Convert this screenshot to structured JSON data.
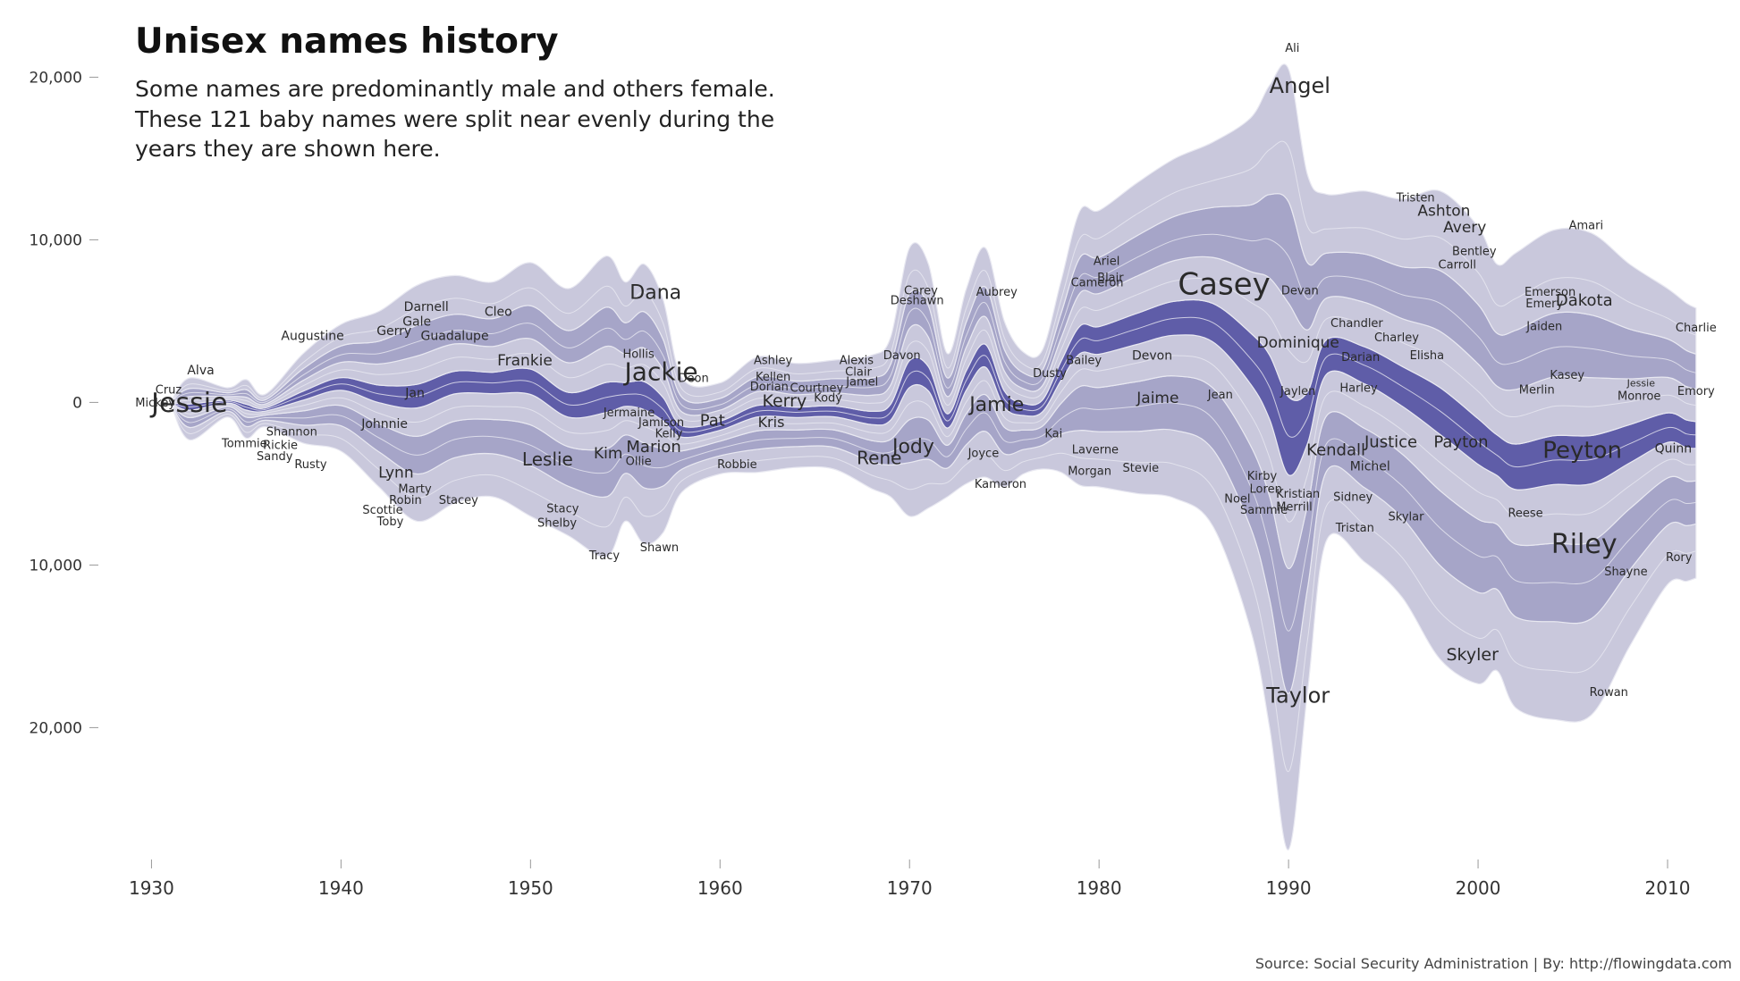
{
  "chart_data": {
    "type": "area",
    "subtype": "streamgraph",
    "title": "Unisex names history",
    "subtitle_lines": [
      "Some names are predominantly male and others female.",
      "These 121 baby names were split near evenly during the",
      "years they are shown here."
    ],
    "source": "Source: Social Security Administration | By: http://flowingdata.com",
    "x_ticks": [
      "1930",
      "1940",
      "1950",
      "1960",
      "1970",
      "1980",
      "1990",
      "2000",
      "2010"
    ],
    "x_tick_values": [
      1930,
      1940,
      1950,
      1960,
      1970,
      1980,
      1990,
      2000,
      2010
    ],
    "y_ticks": [
      "20,000",
      "10,000",
      "0",
      "10,000",
      "20,000"
    ],
    "y_tick_values": [
      20000,
      10000,
      0,
      -10000,
      -20000
    ],
    "xlim": [
      1928.8,
      2012.5
    ],
    "ylim": [
      -28000,
      22000
    ],
    "colors": {
      "light": "#c9c8dc",
      "mid": "#a6a5c8",
      "deep": "#7a78b8",
      "dark": "#5f5da8",
      "separator": "#e8e8f1"
    },
    "envelope": {
      "years": [
        1931,
        1932,
        1934,
        1935,
        1936,
        1938,
        1940,
        1942,
        1944,
        1946,
        1948,
        1950,
        1952,
        1954,
        1955,
        1956,
        1957,
        1958,
        1960,
        1962,
        1964,
        1966,
        1968,
        1969,
        1970,
        1971,
        1972,
        1973,
        1974,
        1975,
        1976,
        1977,
        1978,
        1979,
        1980,
        1982,
        1984,
        1986,
        1988,
        1989,
        1990,
        1991,
        1992,
        1994,
        1996,
        1998,
        2000,
        2001,
        2002,
        2004,
        2006,
        2008,
        2010,
        2011,
        2011.5
      ],
      "top": [
        0,
        1500,
        900,
        1400,
        500,
        3000,
        4800,
        5600,
        7200,
        7800,
        7400,
        8600,
        7000,
        9000,
        7400,
        8500,
        6300,
        1500,
        1200,
        2800,
        2400,
        2600,
        2900,
        4000,
        9500,
        8500,
        3000,
        7000,
        9500,
        5000,
        3100,
        3200,
        7500,
        11800,
        11800,
        13500,
        15000,
        16000,
        17500,
        19500,
        20500,
        14000,
        12800,
        13000,
        12500,
        13000,
        10800,
        8500,
        9200,
        10600,
        10400,
        8500,
        7000,
        6100,
        5800
      ],
      "bottom": [
        0,
        -2300,
        -900,
        -2200,
        -1500,
        -2500,
        -3000,
        -5200,
        -7300,
        -6200,
        -5800,
        -7000,
        -8200,
        -9500,
        -7300,
        -8700,
        -8000,
        -5500,
        -4400,
        -4300,
        -4000,
        -4100,
        -5300,
        -5800,
        -7000,
        -6500,
        -5800,
        -5000,
        -4600,
        -5200,
        -4400,
        -4100,
        -4300,
        -5100,
        -5200,
        -5600,
        -5900,
        -7600,
        -14000,
        -20000,
        -27500,
        -17800,
        -8500,
        -9800,
        -12000,
        -15800,
        -17300,
        -16500,
        -18800,
        -19500,
        -19200,
        -15000,
        -11200,
        -11000,
        -10800
      ]
    },
    "names": [
      {
        "label": "Jessie",
        "year": 1932,
        "y": 0,
        "size": 30
      },
      {
        "label": "Alva",
        "year": 1932.6,
        "y": 2000,
        "size": 14
      },
      {
        "label": "Cruz",
        "year": 1930.9,
        "y": 800,
        "size": 13
      },
      {
        "label": "Mickey",
        "year": 1930.2,
        "y": 0,
        "size": 13
      },
      {
        "label": "Tommie",
        "year": 1934.9,
        "y": -2500,
        "size": 13
      },
      {
        "label": "Shannon",
        "year": 1937.4,
        "y": -1800,
        "size": 13
      },
      {
        "label": "Rickie",
        "year": 1936.8,
        "y": -2600,
        "size": 13
      },
      {
        "label": "Sandy",
        "year": 1936.5,
        "y": -3300,
        "size": 13
      },
      {
        "label": "Rusty",
        "year": 1938.4,
        "y": -3800,
        "size": 13
      },
      {
        "label": "Augustine",
        "year": 1938.5,
        "y": 4100,
        "size": 14
      },
      {
        "label": "Darnell",
        "year": 1944.5,
        "y": 5900,
        "size": 14
      },
      {
        "label": "Gale",
        "year": 1944,
        "y": 5000,
        "size": 14
      },
      {
        "label": "Gerry",
        "year": 1942.8,
        "y": 4400,
        "size": 14
      },
      {
        "label": "Guadalupe",
        "year": 1946,
        "y": 4100,
        "size": 14
      },
      {
        "label": "Cleo",
        "year": 1948.3,
        "y": 5600,
        "size": 14
      },
      {
        "label": "Dana",
        "year": 1956.6,
        "y": 6800,
        "size": 22
      },
      {
        "label": "Frankie",
        "year": 1949.7,
        "y": 2600,
        "size": 17
      },
      {
        "label": "Jan",
        "year": 1943.9,
        "y": 600,
        "size": 14
      },
      {
        "label": "Johnnie",
        "year": 1942.3,
        "y": -1300,
        "size": 14
      },
      {
        "label": "Hollis",
        "year": 1955.7,
        "y": 3000,
        "size": 13
      },
      {
        "label": "Jackie",
        "year": 1956.9,
        "y": 1900,
        "size": 28
      },
      {
        "label": "Deon",
        "year": 1958.6,
        "y": 1500,
        "size": 13
      },
      {
        "label": "Jermaine",
        "year": 1955.2,
        "y": -600,
        "size": 13
      },
      {
        "label": "Jamison",
        "year": 1956.9,
        "y": -1200,
        "size": 13
      },
      {
        "label": "Kelly",
        "year": 1957.3,
        "y": -1900,
        "size": 13
      },
      {
        "label": "Pat",
        "year": 1959.6,
        "y": -1100,
        "size": 18
      },
      {
        "label": "Kris",
        "year": 1962.7,
        "y": -1200,
        "size": 16
      },
      {
        "label": "Leslie",
        "year": 1950.9,
        "y": -3500,
        "size": 20
      },
      {
        "label": "Kim",
        "year": 1954.1,
        "y": -3100,
        "size": 17
      },
      {
        "label": "Marion",
        "year": 1956.5,
        "y": -2700,
        "size": 18
      },
      {
        "label": "Ollie",
        "year": 1955.7,
        "y": -3600,
        "size": 13
      },
      {
        "label": "Robbie",
        "year": 1960.9,
        "y": -3800,
        "size": 13
      },
      {
        "label": "Lynn",
        "year": 1942.9,
        "y": -4300,
        "size": 17
      },
      {
        "label": "Marty",
        "year": 1943.9,
        "y": -5300,
        "size": 13
      },
      {
        "label": "Robin",
        "year": 1943.4,
        "y": -6000,
        "size": 13
      },
      {
        "label": "Stacey",
        "year": 1946.2,
        "y": -6000,
        "size": 13
      },
      {
        "label": "Scottie",
        "year": 1942.2,
        "y": -6600,
        "size": 13
      },
      {
        "label": "Toby",
        "year": 1942.6,
        "y": -7300,
        "size": 13
      },
      {
        "label": "Stacy",
        "year": 1951.7,
        "y": -6500,
        "size": 13
      },
      {
        "label": "Shelby",
        "year": 1951.4,
        "y": -7400,
        "size": 13
      },
      {
        "label": "Tracy",
        "year": 1953.9,
        "y": -9400,
        "size": 13
      },
      {
        "label": "Shawn",
        "year": 1956.8,
        "y": -8900,
        "size": 13
      },
      {
        "label": "Ashley",
        "year": 1962.8,
        "y": 2600,
        "size": 13
      },
      {
        "label": "Kellen",
        "year": 1962.8,
        "y": 1600,
        "size": 13
      },
      {
        "label": "Dorian",
        "year": 1962.6,
        "y": 1000,
        "size": 13
      },
      {
        "label": "Courtney",
        "year": 1965.1,
        "y": 900,
        "size": 13
      },
      {
        "label": "Kerry",
        "year": 1963.4,
        "y": 100,
        "size": 19
      },
      {
        "label": "Kody",
        "year": 1965.7,
        "y": 300,
        "size": 13
      },
      {
        "label": "Alexis",
        "year": 1967.2,
        "y": 2600,
        "size": 13
      },
      {
        "label": "Clair",
        "year": 1967.3,
        "y": 1900,
        "size": 13
      },
      {
        "label": "Jamel",
        "year": 1967.5,
        "y": 1300,
        "size": 13
      },
      {
        "label": "Davon",
        "year": 1969.6,
        "y": 2900,
        "size": 13
      },
      {
        "label": "Carey",
        "year": 1970.6,
        "y": 6900,
        "size": 13
      },
      {
        "label": "Deshawn",
        "year": 1970.4,
        "y": 6300,
        "size": 13
      },
      {
        "label": "Aubrey",
        "year": 1974.6,
        "y": 6800,
        "size": 13
      },
      {
        "label": "Jamie",
        "year": 1974.6,
        "y": -100,
        "size": 22
      },
      {
        "label": "Jody",
        "year": 1970.2,
        "y": -2700,
        "size": 22
      },
      {
        "label": "Rene",
        "year": 1968.4,
        "y": -3400,
        "size": 20
      },
      {
        "label": "Joyce",
        "year": 1973.9,
        "y": -3100,
        "size": 13
      },
      {
        "label": "Kameron",
        "year": 1974.8,
        "y": -5000,
        "size": 13
      },
      {
        "label": "Dusty",
        "year": 1977.4,
        "y": 1800,
        "size": 13
      },
      {
        "label": "Kai",
        "year": 1977.6,
        "y": -1900,
        "size": 13
      },
      {
        "label": "Bailey",
        "year": 1979.2,
        "y": 2600,
        "size": 13
      },
      {
        "label": "Laverne",
        "year": 1979.8,
        "y": -2900,
        "size": 13
      },
      {
        "label": "Morgan",
        "year": 1979.5,
        "y": -4200,
        "size": 13
      },
      {
        "label": "Stevie",
        "year": 1982.2,
        "y": -4000,
        "size": 13
      },
      {
        "label": "Ariel",
        "year": 1980.4,
        "y": 8700,
        "size": 13
      },
      {
        "label": "Blair",
        "year": 1980.6,
        "y": 7700,
        "size": 13
      },
      {
        "label": "Cameron",
        "year": 1979.9,
        "y": 7400,
        "size": 13
      },
      {
        "label": "Casey",
        "year": 1986.6,
        "y": 7300,
        "size": 34
      },
      {
        "label": "Devan",
        "year": 1990.6,
        "y": 6900,
        "size": 13
      },
      {
        "label": "Devon",
        "year": 1982.8,
        "y": 2900,
        "size": 14
      },
      {
        "label": "Dominique",
        "year": 1990.5,
        "y": 3700,
        "size": 17
      },
      {
        "label": "Jaime",
        "year": 1983.1,
        "y": 300,
        "size": 17
      },
      {
        "label": "Jean",
        "year": 1986.4,
        "y": 500,
        "size": 13
      },
      {
        "label": "Jaylen",
        "year": 1990.5,
        "y": 700,
        "size": 13
      },
      {
        "label": "Harley",
        "year": 1993.7,
        "y": 900,
        "size": 13
      },
      {
        "label": "Angel",
        "year": 1990.6,
        "y": 19500,
        "size": 24
      },
      {
        "label": "Ali",
        "year": 1990.2,
        "y": 21800,
        "size": 13
      },
      {
        "label": "Tristen",
        "year": 1996.7,
        "y": 12600,
        "size": 13
      },
      {
        "label": "Ashton",
        "year": 1998.2,
        "y": 11800,
        "size": 17
      },
      {
        "label": "Avery",
        "year": 1999.3,
        "y": 10800,
        "size": 17
      },
      {
        "label": "Bentley",
        "year": 1999.8,
        "y": 9300,
        "size": 13
      },
      {
        "label": "Carroll",
        "year": 1998.9,
        "y": 8500,
        "size": 13
      },
      {
        "label": "Chandler",
        "year": 1993.6,
        "y": 4900,
        "size": 13
      },
      {
        "label": "Charley",
        "year": 1995.7,
        "y": 4000,
        "size": 13
      },
      {
        "label": "Darian",
        "year": 1993.8,
        "y": 2800,
        "size": 13
      },
      {
        "label": "Elisha",
        "year": 1997.3,
        "y": 2900,
        "size": 13
      },
      {
        "label": "Amari",
        "year": 2005.7,
        "y": 10900,
        "size": 13
      },
      {
        "label": "Emerson",
        "year": 2003.8,
        "y": 6800,
        "size": 13
      },
      {
        "label": "Emery",
        "year": 2003.5,
        "y": 6100,
        "size": 13
      },
      {
        "label": "Dakota",
        "year": 2005.6,
        "y": 6300,
        "size": 18
      },
      {
        "label": "Jaiden",
        "year": 2003.5,
        "y": 4700,
        "size": 13
      },
      {
        "label": "Charlie",
        "year": 2011.5,
        "y": 4600,
        "size": 13
      },
      {
        "label": "Kasey",
        "year": 2004.7,
        "y": 1700,
        "size": 13
      },
      {
        "label": "Merlin",
        "year": 2003.1,
        "y": 800,
        "size": 13
      },
      {
        "label": "Jessie",
        "year": 2008.6,
        "y": 1200,
        "size": 11
      },
      {
        "label": "Monroe",
        "year": 2008.5,
        "y": 400,
        "size": 13
      },
      {
        "label": "Emory",
        "year": 2011.5,
        "y": 700,
        "size": 13
      },
      {
        "label": "Kendall",
        "year": 1992.5,
        "y": -2900,
        "size": 18
      },
      {
        "label": "Justice",
        "year": 1995.4,
        "y": -2400,
        "size": 18
      },
      {
        "label": "Payton",
        "year": 1999.1,
        "y": -2400,
        "size": 18
      },
      {
        "label": "Peyton",
        "year": 2005.5,
        "y": -2900,
        "size": 26
      },
      {
        "label": "Quinn",
        "year": 2010.3,
        "y": -2800,
        "size": 14
      },
      {
        "label": "Michel",
        "year": 1994.3,
        "y": -3900,
        "size": 14
      },
      {
        "label": "Kirby",
        "year": 1988.6,
        "y": -4500,
        "size": 13
      },
      {
        "label": "Loren",
        "year": 1988.8,
        "y": -5300,
        "size": 13
      },
      {
        "label": "Noel",
        "year": 1987.3,
        "y": -5900,
        "size": 13
      },
      {
        "label": "Kristian",
        "year": 1990.5,
        "y": -5600,
        "size": 13
      },
      {
        "label": "Sammie",
        "year": 1988.7,
        "y": -6600,
        "size": 13
      },
      {
        "label": "Merrill",
        "year": 1990.3,
        "y": -6400,
        "size": 13
      },
      {
        "label": "Sidney",
        "year": 1993.4,
        "y": -5800,
        "size": 13
      },
      {
        "label": "Skylar",
        "year": 1996.2,
        "y": -7000,
        "size": 13
      },
      {
        "label": "Reese",
        "year": 2002.5,
        "y": -6800,
        "size": 13
      },
      {
        "label": "Tristan",
        "year": 1993.5,
        "y": -7700,
        "size": 13
      },
      {
        "label": "Riley",
        "year": 2005.6,
        "y": -8700,
        "size": 30
      },
      {
        "label": "Rory",
        "year": 2010.6,
        "y": -9500,
        "size": 13
      },
      {
        "label": "Shayne",
        "year": 2007.8,
        "y": -10400,
        "size": 13
      },
      {
        "label": "Skyler",
        "year": 1999.7,
        "y": -15500,
        "size": 19
      },
      {
        "label": "Rowan",
        "year": 2006.9,
        "y": -17800,
        "size": 13
      },
      {
        "label": "Taylor",
        "year": 1990.5,
        "y": -18000,
        "size": 24
      }
    ]
  }
}
